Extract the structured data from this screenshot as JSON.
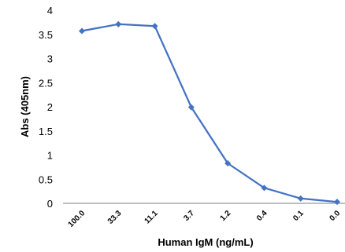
{
  "chart_data": {
    "type": "line",
    "categories": [
      "100.0",
      "33.3",
      "11.1",
      "3.7",
      "1.2",
      "0.4",
      "0.1",
      "0.0"
    ],
    "series": [
      {
        "values": [
          3.57,
          3.71,
          3.67,
          1.99,
          0.83,
          0.32,
          0.1,
          0.03
        ]
      }
    ],
    "xlabel": "Human IgM (ng/mL)",
    "ylabel": "Abs (405nm)",
    "ylim": [
      0,
      4
    ],
    "yticks": [
      "0",
      "0.5",
      "1",
      "1.5",
      "2",
      "2.5",
      "3",
      "3.5",
      "4"
    ],
    "grid": false,
    "legend": "none",
    "series_color": "#4472c4"
  }
}
